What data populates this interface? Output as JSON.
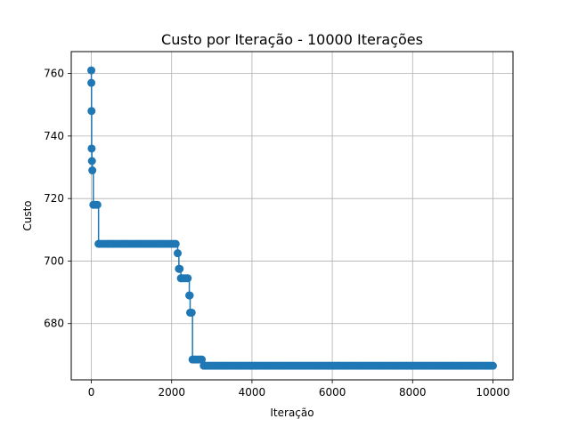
{
  "chart_data": {
    "type": "line",
    "title": "Custo por Iteração - 10000 Iterações",
    "xlabel": "Iteração",
    "ylabel": "Custo",
    "xlim": [
      -500,
      10500
    ],
    "ylim": [
      662,
      767
    ],
    "xticks": [
      0,
      2000,
      4000,
      6000,
      8000,
      10000
    ],
    "yticks": [
      680,
      700,
      720,
      740,
      760
    ],
    "grid": true,
    "marker": "circle",
    "color": "#1f77b4",
    "steps": [
      [
        0,
        761
      ],
      [
        1,
        757
      ],
      [
        5,
        748
      ],
      [
        8,
        736
      ],
      [
        15,
        732
      ],
      [
        25,
        729
      ],
      [
        50,
        718
      ],
      [
        180,
        705.5
      ],
      [
        2150,
        702.5
      ],
      [
        2180,
        697.5
      ],
      [
        2230,
        694.5
      ],
      [
        2440,
        689
      ],
      [
        2460,
        683.5
      ],
      [
        2520,
        668.5
      ],
      [
        2800,
        666.5
      ],
      [
        10000,
        666.5
      ]
    ]
  }
}
